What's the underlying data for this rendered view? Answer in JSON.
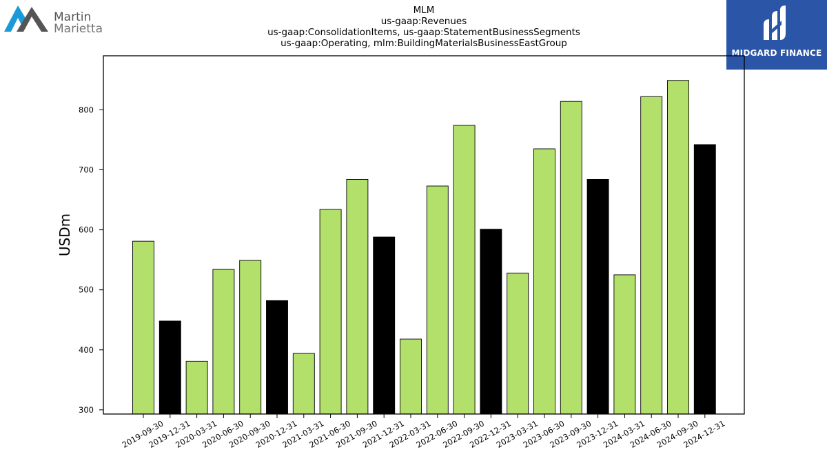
{
  "header": {
    "left_logo_text_1": "Martin",
    "left_logo_text_2": "Marietta",
    "right_logo_text": "MIDGARD FINANCE"
  },
  "colors": {
    "bar_default": "#b3df6b",
    "bar_q4": "#000000",
    "left_logo_blue": "#1a9ad6",
    "left_logo_gray": "#555555",
    "right_logo_bg": "#2b56a8"
  },
  "chart_data": {
    "type": "bar",
    "title_lines": [
      "MLM",
      "us-gaap:Revenues",
      "us-gaap:ConsolidationItems, us-gaap:StatementBusinessSegments",
      "us-gaap:Operating, mlm:BuildingMaterialsBusinessEastGroup"
    ],
    "xlabel": "",
    "ylabel": "USDm",
    "ylim": [
      293,
      890
    ],
    "yticks": [
      300,
      400,
      500,
      600,
      700,
      800
    ],
    "grid": false,
    "categories": [
      "2019-09-30",
      "2019-12-31",
      "2020-03-31",
      "2020-06-30",
      "2020-09-30",
      "2020-12-31",
      "2021-03-31",
      "2021-06-30",
      "2021-09-30",
      "2021-12-31",
      "2022-03-31",
      "2022-06-30",
      "2022-09-30",
      "2022-12-31",
      "2023-03-31",
      "2023-06-30",
      "2023-09-30",
      "2023-12-31",
      "2024-03-31",
      "2024-06-30",
      "2024-09-30",
      "2024-12-31"
    ],
    "values": [
      581,
      448,
      381,
      534,
      549,
      482,
      394,
      634,
      684,
      588,
      418,
      673,
      774,
      601,
      528,
      735,
      814,
      684,
      525,
      822,
      849,
      742
    ],
    "highlight": [
      false,
      true,
      false,
      false,
      false,
      true,
      false,
      false,
      false,
      true,
      false,
      false,
      false,
      true,
      false,
      false,
      false,
      true,
      false,
      false,
      false,
      true
    ]
  }
}
